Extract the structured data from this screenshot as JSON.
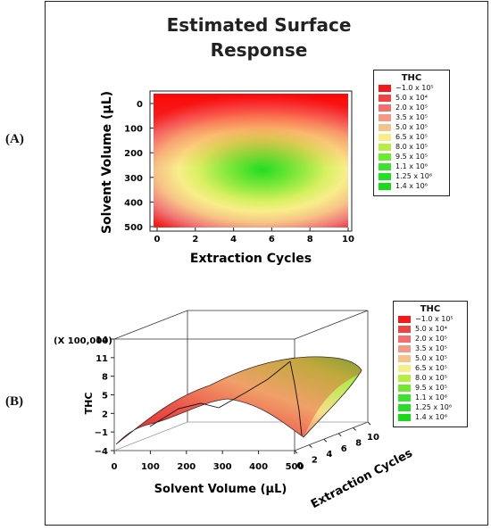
{
  "panel_labels": {
    "a": "(A)",
    "b": "(B)"
  },
  "title_line1": "Estimated Surface",
  "title_line2": "Response",
  "legend": {
    "title": "THC",
    "items": [
      {
        "label": "−1.0 x 10⁵",
        "color": "#f01a1a"
      },
      {
        "label": "5.0 x 10⁴",
        "color": "#ee4444"
      },
      {
        "label": "2.0 x 10⁵",
        "color": "#f07070"
      },
      {
        "label": "3.5 x 10⁵",
        "color": "#f29a86"
      },
      {
        "label": "5.0 x 10⁵",
        "color": "#f4c48c"
      },
      {
        "label": "6.5 x 10⁵",
        "color": "#f6ee8a"
      },
      {
        "label": "8.0 x 10⁵",
        "color": "#b6ee46"
      },
      {
        "label": "9.5 x 10⁵",
        "color": "#6ee832"
      },
      {
        "label": "1.1 x 10⁶",
        "color": "#3ee032"
      },
      {
        "label": "1.25 x 10⁶",
        "color": "#2adc2a"
      },
      {
        "label": "1.4 x 10⁶",
        "color": "#1ad81a"
      }
    ]
  },
  "chart_data": [
    {
      "type": "heatmap",
      "title": "Estimated Surface Response",
      "xlabel": "Extraction Cycles",
      "ylabel": "Solvent Volume (μL)",
      "xlim": [
        0,
        10
      ],
      "ylim": [
        0,
        500
      ],
      "y_inverted": true,
      "x_ticks": [
        "0",
        "2",
        "4",
        "6",
        "8",
        "10"
      ],
      "y_ticks": [
        "0",
        "100",
        "200",
        "300",
        "400",
        "500"
      ],
      "max_response_at": {
        "x": 6,
        "y": 320
      },
      "legend_position": "right"
    },
    {
      "type": "surface",
      "xlabel": "Solvent Volume (μL)",
      "ylabel": "Extraction Cycles",
      "zlabel": "THC",
      "zscale_note": "(X 100,000)",
      "xlim": [
        0,
        500
      ],
      "ylim": [
        0,
        10
      ],
      "zlim": [
        -4,
        14
      ],
      "x_ticks": [
        "0",
        "100",
        "200",
        "300",
        "400",
        "500"
      ],
      "y_ticks": [
        "0",
        "2",
        "4",
        "6",
        "8",
        "10"
      ],
      "z_ticks": [
        "14",
        "11",
        "8",
        "5",
        "2",
        "−1",
        "−4"
      ],
      "surface_min_approx": -3,
      "surface_max_approx": 12,
      "legend_position": "right"
    }
  ]
}
